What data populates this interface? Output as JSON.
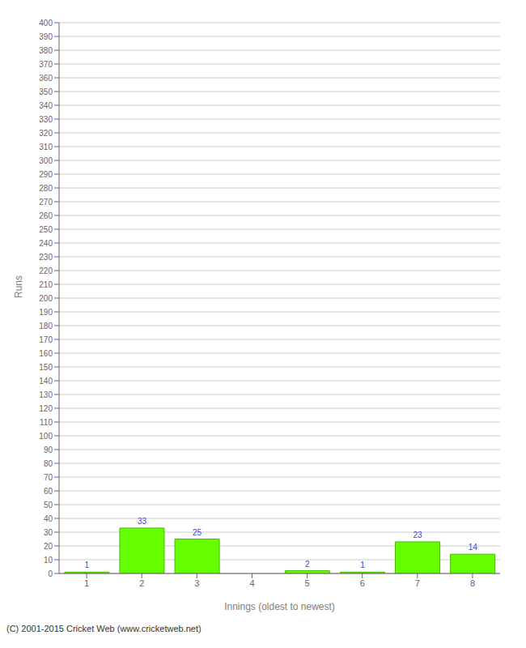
{
  "chart_data": {
    "type": "bar",
    "categories": [
      "1",
      "2",
      "3",
      "4",
      "5",
      "6",
      "7",
      "8"
    ],
    "values": [
      1,
      33,
      25,
      0,
      2,
      1,
      23,
      14
    ],
    "color": "#66ff00",
    "xlabel": "Innings (oldest to newest)",
    "ylabel": "Runs",
    "ylim": [
      0,
      400
    ],
    "yticks": [
      0,
      10,
      20,
      30,
      40,
      50,
      60,
      70,
      80,
      90,
      100,
      110,
      120,
      130,
      140,
      150,
      160,
      170,
      180,
      190,
      200,
      210,
      220,
      230,
      240,
      250,
      260,
      270,
      280,
      290,
      300,
      310,
      320,
      330,
      340,
      350,
      360,
      370,
      380,
      390,
      400
    ],
    "grid": true,
    "data_labels": true,
    "annotations": [
      "(C) 2001-2015 Cricket Web (www.cricketweb.net)"
    ]
  }
}
